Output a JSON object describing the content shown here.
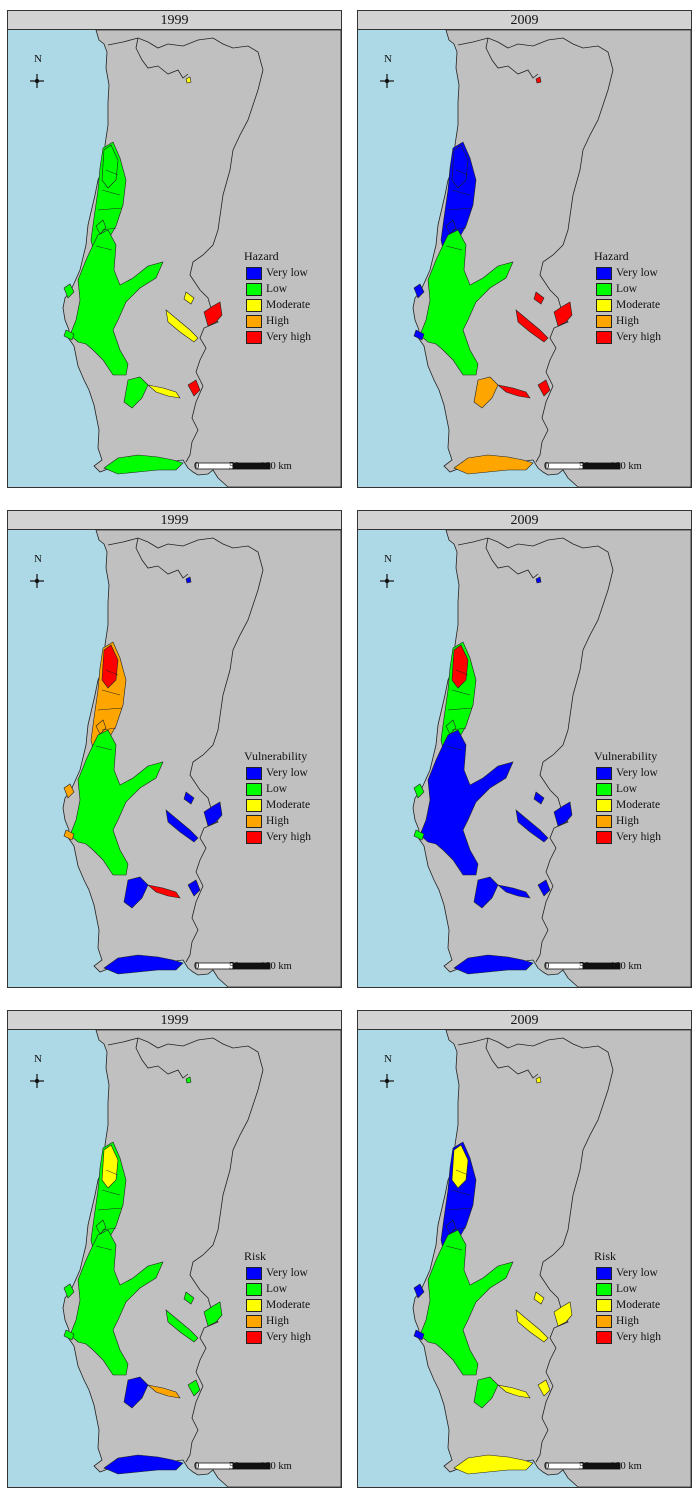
{
  "maps": [
    {
      "year": "1999",
      "variable": "Hazard",
      "colors": {
        "north": "#00ff00",
        "coast": "#00ff00",
        "central": "#00ff00",
        "ridges": "#ffff00",
        "east": "#ff0000",
        "south": "#00ff00",
        "lobe": "#00ff00",
        "lower": "#ffff00"
      }
    },
    {
      "year": "2009",
      "variable": "Hazard",
      "colors": {
        "north": "#0000ff",
        "coast": "#0000ff",
        "central": "#00ff00",
        "ridges": "#ff0000",
        "east": "#ff0000",
        "south": "#ffa500",
        "lobe": "#ffa500",
        "lower": "#ff0000"
      }
    },
    {
      "year": "1999",
      "variable": "Vulnerability",
      "colors": {
        "north": "#ff0000",
        "coast": "#ffa500",
        "central": "#00ff00",
        "ridges": "#0000ff",
        "east": "#0000ff",
        "south": "#0000ff",
        "lobe": "#0000ff",
        "lower": "#ff0000"
      }
    },
    {
      "year": "2009",
      "variable": "Vulnerability",
      "colors": {
        "north": "#ff0000",
        "coast": "#00ff00",
        "central": "#0000ff",
        "ridges": "#0000ff",
        "east": "#0000ff",
        "south": "#0000ff",
        "lobe": "#0000ff",
        "lower": "#0000ff"
      }
    },
    {
      "year": "1999",
      "variable": "Risk",
      "colors": {
        "north": "#ffff00",
        "coast": "#00ff00",
        "central": "#00ff00",
        "ridges": "#00ff00",
        "east": "#00ff00",
        "south": "#0000ff",
        "lobe": "#0000ff",
        "lower": "#ffa500"
      }
    },
    {
      "year": "2009",
      "variable": "Risk",
      "colors": {
        "north": "#ffff00",
        "coast": "#0000ff",
        "central": "#00ff00",
        "ridges": "#ffff00",
        "east": "#ffff00",
        "south": "#ffff00",
        "lobe": "#00ff00",
        "lower": "#ffff00"
      }
    }
  ],
  "legend_classes": [
    {
      "label": "Very low",
      "color": "#0000ff"
    },
    {
      "label": "Low",
      "color": "#00ff00"
    },
    {
      "label": "Moderate",
      "color": "#ffff00"
    },
    {
      "label": "High",
      "color": "#ffa500"
    },
    {
      "label": "Very high",
      "color": "#ff0000"
    }
  ],
  "north_label": "N",
  "north_icon": "north-arrow-icon",
  "scale_bar": {
    "labels": [
      "0",
      "50",
      "100 km"
    ]
  },
  "colors": {
    "sea": "#add8e6",
    "land": "#c0c0c0",
    "border": "#222222",
    "header": "#d3d3d3"
  }
}
